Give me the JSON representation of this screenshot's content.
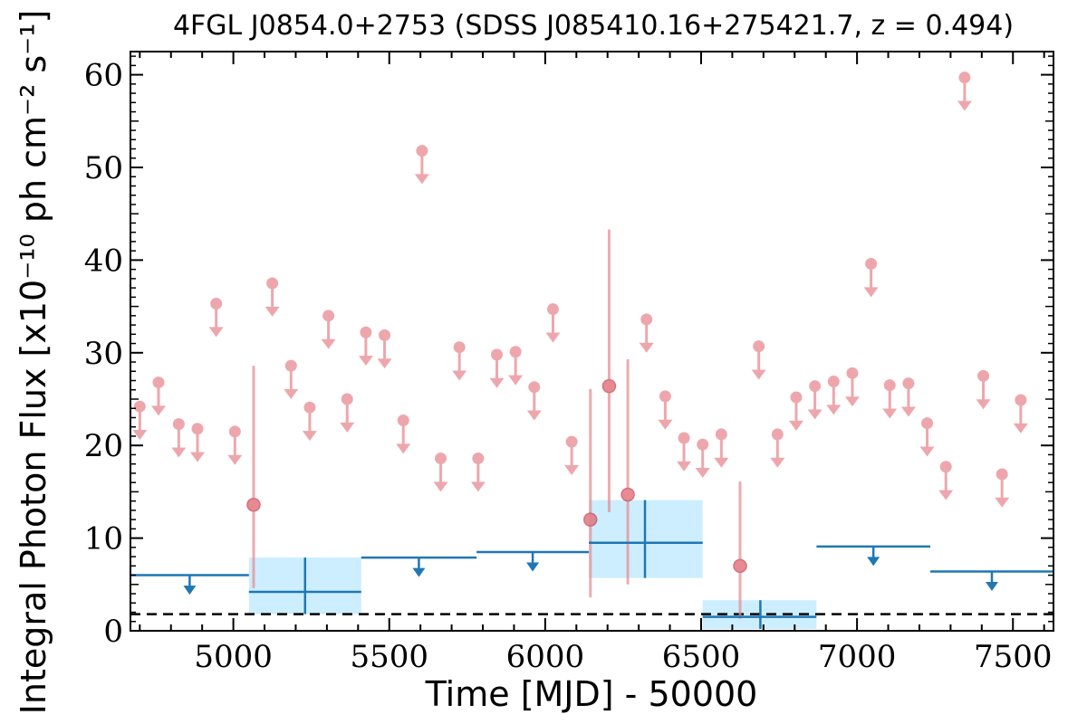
{
  "chart_data": {
    "type": "scatter",
    "title": "4FGL J0854.0+2753 (SDSS J085410.16+275421.7, z = 0.494)",
    "xlabel": "Time [MJD] - 50000",
    "ylabel": "Integral Photon Flux [x10⁻¹⁰ ph cm⁻² s⁻¹]",
    "xlim": [
      4670,
      7630
    ],
    "ylim": [
      0,
      62.5
    ],
    "x_ticks": [
      5000,
      5500,
      6000,
      6500,
      7000,
      7500
    ],
    "y_ticks": [
      0,
      10,
      20,
      30,
      40,
      50,
      60
    ],
    "reference_line": {
      "y": 1.8,
      "style": "dashed"
    },
    "series": [
      {
        "kind": "short-bin upper limits",
        "color": "#e88f95",
        "points": [
          {
            "x": 4700,
            "y": 24.2
          },
          {
            "x": 4760,
            "y": 26.8
          },
          {
            "x": 4825,
            "y": 22.3
          },
          {
            "x": 4885,
            "y": 21.8
          },
          {
            "x": 4945,
            "y": 35.3
          },
          {
            "x": 5005,
            "y": 21.5
          },
          {
            "x": 5125,
            "y": 37.5
          },
          {
            "x": 5185,
            "y": 28.6
          },
          {
            "x": 5245,
            "y": 24.1
          },
          {
            "x": 5305,
            "y": 34.0
          },
          {
            "x": 5365,
            "y": 25.0
          },
          {
            "x": 5425,
            "y": 32.2
          },
          {
            "x": 5485,
            "y": 31.9
          },
          {
            "x": 5545,
            "y": 22.7
          },
          {
            "x": 5605,
            "y": 51.8
          },
          {
            "x": 5665,
            "y": 18.6
          },
          {
            "x": 5725,
            "y": 30.6
          },
          {
            "x": 5785,
            "y": 18.6
          },
          {
            "x": 5845,
            "y": 29.8
          },
          {
            "x": 5905,
            "y": 30.1
          },
          {
            "x": 5965,
            "y": 26.3
          },
          {
            "x": 6025,
            "y": 34.7
          },
          {
            "x": 6085,
            "y": 20.4
          },
          {
            "x": 6325,
            "y": 33.6
          },
          {
            "x": 6385,
            "y": 25.3
          },
          {
            "x": 6445,
            "y": 20.8
          },
          {
            "x": 6505,
            "y": 20.1
          },
          {
            "x": 6565,
            "y": 21.2
          },
          {
            "x": 6685,
            "y": 30.7
          },
          {
            "x": 6745,
            "y": 21.2
          },
          {
            "x": 6805,
            "y": 25.2
          },
          {
            "x": 6865,
            "y": 26.4
          },
          {
            "x": 6925,
            "y": 26.9
          },
          {
            "x": 6985,
            "y": 27.8
          },
          {
            "x": 7045,
            "y": 39.6
          },
          {
            "x": 7105,
            "y": 26.5
          },
          {
            "x": 7165,
            "y": 26.7
          },
          {
            "x": 7225,
            "y": 22.4
          },
          {
            "x": 7285,
            "y": 17.7
          },
          {
            "x": 7345,
            "y": 59.7
          },
          {
            "x": 7405,
            "y": 27.5
          },
          {
            "x": 7465,
            "y": 16.9
          },
          {
            "x": 7525,
            "y": 24.9
          }
        ]
      },
      {
        "kind": "short-bin detections",
        "color": "#e88f95",
        "points": [
          {
            "x": 5065,
            "y": 13.6,
            "ylo": 4.6,
            "yhi": 28.6
          },
          {
            "x": 6145,
            "y": 12.0,
            "ylo": 3.6,
            "yhi": 26.1
          },
          {
            "x": 6205,
            "y": 26.4,
            "ylo": 12.8,
            "yhi": 43.3
          },
          {
            "x": 6265,
            "y": 14.7,
            "ylo": 5.0,
            "yhi": 29.3
          },
          {
            "x": 6625,
            "y": 7.0,
            "ylo": 1.3,
            "yhi": 16.1
          }
        ]
      },
      {
        "kind": "long-bin upper limits",
        "color": "#1f77b4",
        "points": [
          {
            "x0": 4670,
            "x1": 5050,
            "y": 6.0
          },
          {
            "x0": 5410,
            "x1": 5780,
            "y": 7.9
          },
          {
            "x0": 5780,
            "x1": 6140,
            "y": 8.5
          },
          {
            "x0": 6870,
            "x1": 7235,
            "y": 9.1
          },
          {
            "x0": 7235,
            "x1": 7630,
            "y": 6.4
          }
        ]
      },
      {
        "kind": "long-bin detections",
        "color": "#1f77b4",
        "band_color": "#cceeff",
        "points": [
          {
            "x0": 5050,
            "x1": 5410,
            "x": 5230,
            "y": 4.2,
            "ylo": 1.8,
            "yhi": 7.9
          },
          {
            "x0": 6140,
            "x1": 6505,
            "x": 6320,
            "y": 9.5,
            "ylo": 5.7,
            "yhi": 14.1
          },
          {
            "x0": 6505,
            "x1": 6870,
            "x": 6690,
            "y": 1.5,
            "ylo": 0.2,
            "yhi": 3.3
          }
        ]
      }
    ]
  }
}
